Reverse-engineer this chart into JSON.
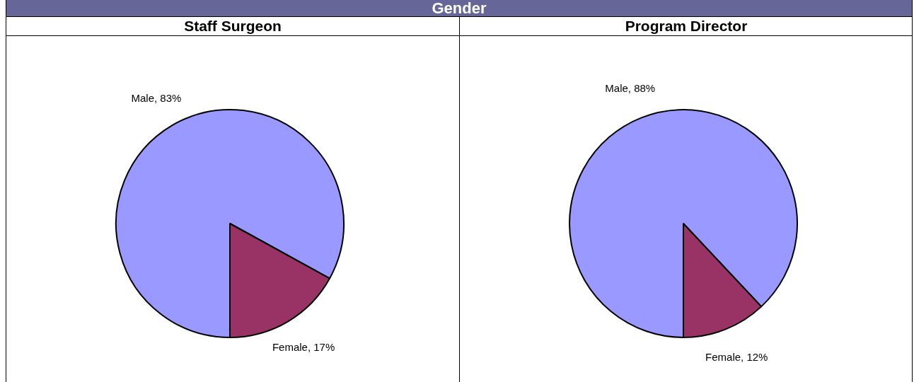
{
  "chart_data": [
    {
      "type": "pie",
      "title": "Gender",
      "subtitle": "Staff Surgeon",
      "categories": [
        "Male",
        "Female"
      ],
      "values": [
        83,
        17
      ],
      "colors": [
        "#9999ff",
        "#993366"
      ],
      "value_labels": [
        "83%",
        "17%"
      ],
      "legend": false
    },
    {
      "type": "pie",
      "subtitle": "Program Director",
      "categories": [
        "Male",
        "Female"
      ],
      "values": [
        88,
        12
      ],
      "colors": [
        "#9999ff",
        "#993366"
      ],
      "value_labels": [
        "88%",
        "12%"
      ],
      "legend": false
    }
  ]
}
